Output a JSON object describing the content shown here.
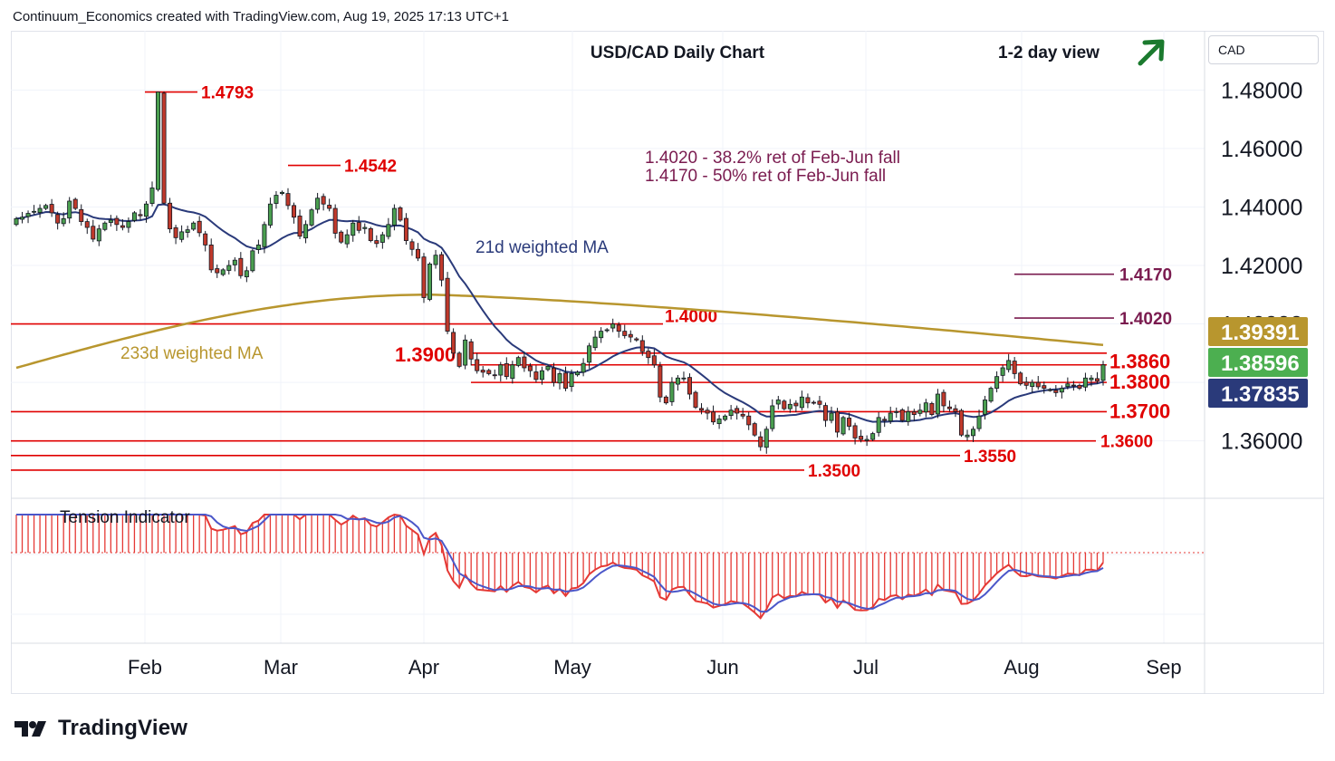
{
  "header": {
    "text": "Continuum_Economics created with TradingView.com, Aug 19, 2025 17:13 UTC+1"
  },
  "currency_button": "CAD",
  "branding": {
    "name": "TradingView"
  },
  "chart_data": {
    "type": "candlestick",
    "title": "USD/CAD Daily Chart",
    "view_label": "1-2 day view",
    "view_direction": "up",
    "y_ticks": [
      "1.48000",
      "1.46000",
      "1.44000",
      "1.42000",
      "1.36000"
    ],
    "ylim": [
      1.341,
      1.499
    ],
    "x_ticks": [
      "Feb",
      "Mar",
      "Apr",
      "May",
      "Jun",
      "Jul",
      "Aug",
      "Sep"
    ],
    "price_badges": [
      {
        "value": "1.39391",
        "color": "#b8962e"
      },
      {
        "value": "1.38596",
        "color": "#4caf50"
      },
      {
        "value": "1.37835",
        "color": "#2a3a7a"
      }
    ],
    "levels": [
      {
        "label": "1.4000",
        "value": 1.4
      },
      {
        "label": "1.3900",
        "value": 1.39
      },
      {
        "label": "1.3860",
        "value": 1.386
      },
      {
        "label": "1.3800",
        "value": 1.38
      },
      {
        "label": "1.3700",
        "value": 1.37
      },
      {
        "label": "1.3600",
        "value": 1.36
      },
      {
        "label": "1.3550",
        "value": 1.355
      },
      {
        "label": "1.3500",
        "value": 1.35
      }
    ],
    "peak_labels": [
      {
        "label": "1.4793",
        "value": 1.4793
      },
      {
        "label": "1.4542",
        "value": 1.4542
      }
    ],
    "target_labels": [
      {
        "label": "1.4170",
        "value": 1.417
      },
      {
        "label": "1.4020",
        "value": 1.402
      }
    ],
    "retracement_notes": [
      "1.4020 - 38.2% ret of Feb-Jun fall",
      "1.4170 - 50% ret of Feb-Jun fall"
    ],
    "series_labels": {
      "fast_ma": "21d weighted MA",
      "slow_ma": "233d weighted MA",
      "indicator": "Tension Indicator"
    },
    "closes": [
      1.436,
      1.4365,
      1.4378,
      1.4385,
      1.4395,
      1.4405,
      1.438,
      1.4345,
      1.436,
      1.442,
      1.4395,
      1.435,
      1.433,
      1.429,
      1.4325,
      1.4345,
      1.4355,
      1.434,
      1.433,
      1.435,
      1.438,
      1.437,
      1.441,
      1.4465,
      1.4793,
      1.4413,
      1.4325,
      1.4295,
      1.4315,
      1.4322,
      1.4345,
      1.4312,
      1.427,
      1.4185,
      1.4175,
      1.4185,
      1.42,
      1.4218,
      1.4165,
      1.4182,
      1.425,
      1.427,
      1.434,
      1.441,
      1.444,
      1.445,
      1.4405,
      1.4365,
      1.43,
      1.434,
      1.439,
      1.443,
      1.441,
      1.4395,
      1.431,
      1.428,
      1.4305,
      1.4345,
      1.432,
      1.433,
      1.4285,
      1.4275,
      1.4305,
      1.434,
      1.4395,
      1.4355,
      1.4285,
      1.4255,
      1.4225,
      1.409,
      1.4205,
      1.4235,
      1.415,
      1.3975,
      1.39,
      1.3855,
      1.3945,
      1.388,
      1.384,
      1.3835,
      1.383,
      1.3825,
      1.386,
      1.382,
      1.386,
      1.3885,
      1.385,
      1.384,
      1.381,
      1.384,
      1.3855,
      1.38,
      1.383,
      1.378,
      1.383,
      1.3835,
      1.3865,
      1.3925,
      1.3955,
      1.3975,
      1.398,
      1.4,
      1.3975,
      1.396,
      1.3955,
      1.3945,
      1.3905,
      1.3885,
      1.386,
      1.375,
      1.373,
      1.38,
      1.3815,
      1.3815,
      1.376,
      1.3715,
      1.3705,
      1.3695,
      1.3665,
      1.3675,
      1.3685,
      1.3705,
      1.3695,
      1.3685,
      1.3655,
      1.362,
      1.358,
      1.364,
      1.372,
      1.374,
      1.371,
      1.3725,
      1.372,
      1.375,
      1.373,
      1.373,
      1.3725,
      1.367,
      1.3695,
      1.363,
      1.368,
      1.365,
      1.361,
      1.3605,
      1.3605,
      1.3625,
      1.368,
      1.367,
      1.3695,
      1.37,
      1.367,
      1.37,
      1.369,
      1.3705,
      1.373,
      1.369,
      1.376,
      1.372,
      1.371,
      1.37,
      1.362,
      1.362,
      1.364,
      1.3685,
      1.374,
      1.378,
      1.382,
      1.385,
      1.3875,
      1.383,
      1.3795,
      1.379,
      1.38,
      1.3785,
      1.378,
      1.3775,
      1.3765,
      1.378,
      1.3795,
      1.379,
      1.378,
      1.3815,
      1.3815,
      1.3805,
      1.386
    ]
  }
}
